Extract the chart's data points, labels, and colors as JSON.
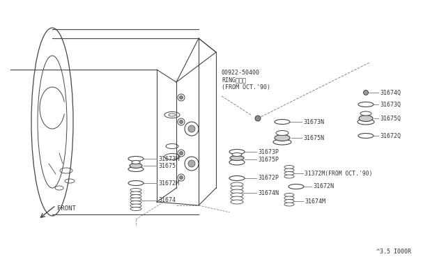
{
  "bg": "#ffffff",
  "lc": "#444444",
  "tc": "#333333",
  "diagram_number": "^3.5 I000R",
  "ring_label": "00922-50400\nRINGリング\n(FROM OCT.'90)",
  "parts_left": [
    "31673M",
    "31675",
    "31672M",
    "31674"
  ],
  "parts_center": [
    "31673P",
    "31675P",
    "31672P",
    "31674N"
  ],
  "parts_mid_upper": [
    "31673N",
    "31675N"
  ],
  "parts_mid_lower": [
    "31372M(FROM OCT.'90)",
    "31672N",
    "31674M"
  ],
  "parts_right": [
    "31674Q",
    "31673Q",
    "31675Q",
    "31672Q"
  ],
  "front_label": "FRONT"
}
